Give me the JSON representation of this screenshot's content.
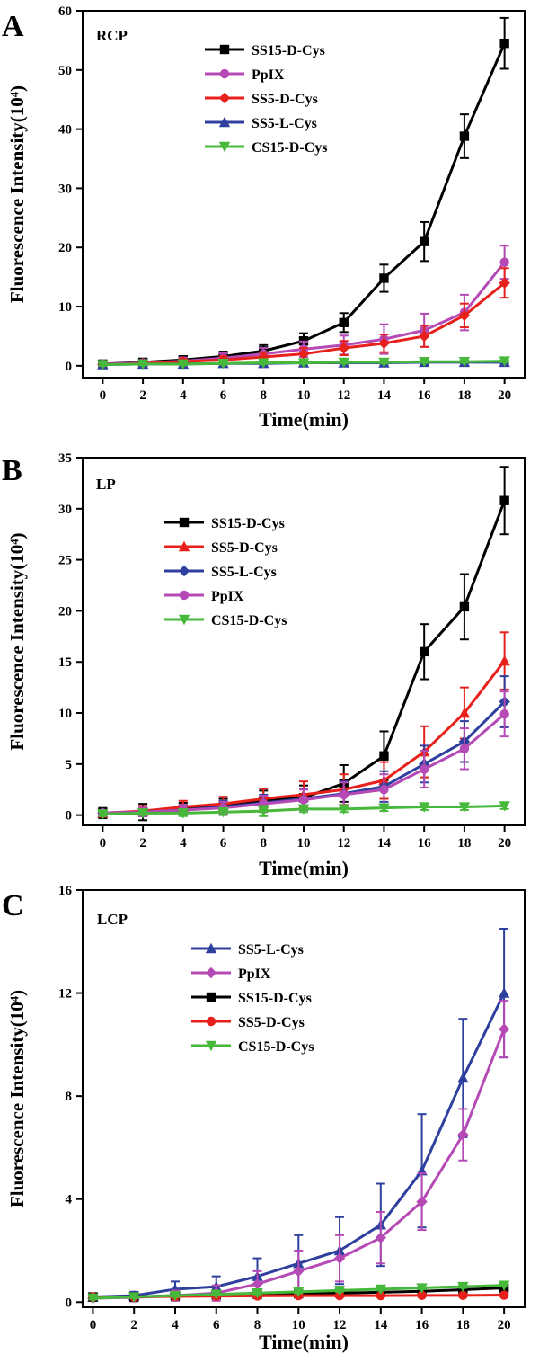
{
  "figure": {
    "panels": [
      {
        "letter": "A",
        "tag": "RCP"
      },
      {
        "letter": "B",
        "tag": "LP"
      },
      {
        "letter": "C",
        "tag": "LCP"
      }
    ]
  },
  "chart_data": [
    {
      "type": "line",
      "panel": "A",
      "title": "RCP",
      "xlabel": "Time(min)",
      "ylabel": "Fluorescence Intensity(10⁴)",
      "xlim": [
        -1,
        21
      ],
      "ylim": [
        -2,
        60
      ],
      "x_ticks": [
        0,
        2,
        4,
        6,
        8,
        10,
        12,
        14,
        16,
        18,
        20
      ],
      "y_ticks": [
        0,
        10,
        20,
        30,
        40,
        50,
        60
      ],
      "x": [
        0,
        2,
        4,
        6,
        8,
        10,
        12,
        14,
        16,
        18,
        20
      ],
      "legend_position": "top-center",
      "series": [
        {
          "name": "SS15-D-Cys",
          "color": "#000000",
          "marker": "square",
          "values": [
            0.3,
            0.6,
            1.0,
            1.6,
            2.5,
            4.2,
            7.3,
            14.8,
            21.0,
            38.8,
            54.5
          ],
          "errors": [
            0.4,
            0.5,
            0.6,
            0.8,
            1.0,
            1.3,
            1.6,
            2.3,
            3.3,
            3.7,
            4.3
          ]
        },
        {
          "name": "PpIX",
          "color": "#b549b5",
          "marker": "circle",
          "values": [
            0.3,
            0.5,
            0.8,
            1.3,
            2.0,
            2.8,
            3.5,
            4.5,
            6.0,
            9.0,
            17.5
          ],
          "errors": [
            0.4,
            0.5,
            0.6,
            0.8,
            1.0,
            1.3,
            1.6,
            2.5,
            2.8,
            3.0,
            2.8
          ]
        },
        {
          "name": "SS5-D-Cys",
          "color": "#e8201c",
          "marker": "diamond",
          "values": [
            0.2,
            0.4,
            0.7,
            1.0,
            1.5,
            2.0,
            3.0,
            3.8,
            5.0,
            8.5,
            14.0
          ],
          "errors": [
            0.3,
            0.4,
            0.5,
            0.6,
            0.8,
            1.0,
            1.2,
            1.5,
            1.8,
            2.0,
            2.5
          ]
        },
        {
          "name": "SS5-L-Cys",
          "color": "#2e3f9e",
          "marker": "triangle-up",
          "values": [
            0.2,
            0.3,
            0.3,
            0.4,
            0.4,
            0.5,
            0.5,
            0.5,
            0.6,
            0.6,
            0.6
          ],
          "errors": [
            0.2,
            0.2,
            0.2,
            0.2,
            0.2,
            0.2,
            0.2,
            0.2,
            0.2,
            0.2,
            0.2
          ]
        },
        {
          "name": "CS15-D-Cys",
          "color": "#46b83a",
          "marker": "triangle-down",
          "values": [
            0.2,
            0.3,
            0.3,
            0.4,
            0.5,
            0.5,
            0.6,
            0.6,
            0.7,
            0.7,
            0.8
          ],
          "errors": [
            0.2,
            0.2,
            0.2,
            0.2,
            0.2,
            0.2,
            0.2,
            0.2,
            0.2,
            0.2,
            0.2
          ]
        }
      ]
    },
    {
      "type": "line",
      "panel": "B",
      "title": "LP",
      "xlabel": "Time(min)",
      "ylabel": "Fluorescence Intensity(10⁴)",
      "xlim": [
        -1,
        21
      ],
      "ylim": [
        -1,
        35
      ],
      "x_ticks": [
        0,
        2,
        4,
        6,
        8,
        10,
        12,
        14,
        16,
        18,
        20
      ],
      "y_ticks": [
        0,
        5,
        10,
        15,
        20,
        25,
        30,
        35
      ],
      "x": [
        0,
        2,
        4,
        6,
        8,
        10,
        12,
        14,
        16,
        18,
        20
      ],
      "legend_position": "top-center",
      "series": [
        {
          "name": "SS15-D-Cys",
          "color": "#000000",
          "marker": "square",
          "values": [
            0.2,
            0.3,
            0.6,
            0.9,
            1.4,
            1.7,
            3.1,
            5.8,
            16.0,
            20.4,
            30.8
          ],
          "errors": [
            0.5,
            0.8,
            0.6,
            0.7,
            1.0,
            1.2,
            1.8,
            2.4,
            2.7,
            3.2,
            3.3
          ]
        },
        {
          "name": "SS5-D-Cys",
          "color": "#e8201c",
          "marker": "triangle-up",
          "values": [
            0.2,
            0.4,
            0.8,
            1.1,
            1.6,
            2.0,
            2.5,
            3.4,
            6.2,
            10.0,
            15.1
          ],
          "errors": [
            0.3,
            0.5,
            0.6,
            0.7,
            1.0,
            1.3,
            1.5,
            1.8,
            2.5,
            2.5,
            2.8
          ]
        },
        {
          "name": "SS5-L-Cys",
          "color": "#2e3f9e",
          "marker": "diamond",
          "values": [
            0.2,
            0.3,
            0.5,
            0.8,
            1.2,
            1.6,
            2.1,
            2.8,
            5.0,
            7.2,
            11.1
          ],
          "errors": [
            0.3,
            0.4,
            0.5,
            0.6,
            0.8,
            1.0,
            1.2,
            1.5,
            1.8,
            2.0,
            2.5
          ]
        },
        {
          "name": "PpIX",
          "color": "#b549b5",
          "marker": "circle",
          "values": [
            0.2,
            0.3,
            0.5,
            0.7,
            1.1,
            1.5,
            2.0,
            2.5,
            4.5,
            6.5,
            9.9
          ],
          "errors": [
            0.3,
            0.4,
            0.5,
            0.6,
            0.8,
            1.0,
            1.2,
            1.5,
            1.8,
            2.0,
            2.2
          ]
        },
        {
          "name": "CS15-D-Cys",
          "color": "#46b83a",
          "marker": "triangle-down",
          "values": [
            0.1,
            0.2,
            0.2,
            0.3,
            0.4,
            0.6,
            0.6,
            0.7,
            0.8,
            0.8,
            0.9
          ],
          "errors": [
            0.2,
            0.2,
            0.3,
            0.3,
            0.5,
            0.3,
            0.3,
            0.3,
            0.3,
            0.3,
            0.3
          ]
        }
      ]
    },
    {
      "type": "line",
      "panel": "C",
      "title": "LCP",
      "xlabel": "Time(min)",
      "ylabel": "Fluorescence Intensity(10⁴)",
      "xlim": [
        -0.5,
        21
      ],
      "ylim": [
        -0.2,
        16
      ],
      "x_ticks": [
        0,
        2,
        4,
        6,
        8,
        10,
        12,
        14,
        16,
        18,
        20
      ],
      "y_ticks": [
        0,
        4,
        8,
        12,
        16
      ],
      "x": [
        0,
        2,
        4,
        6,
        8,
        10,
        12,
        14,
        16,
        18,
        20
      ],
      "legend_position": "top-center",
      "series": [
        {
          "name": "SS5-L-Cys",
          "color": "#2e3f9e",
          "marker": "triangle-up",
          "values": [
            0.2,
            0.25,
            0.5,
            0.6,
            1.0,
            1.5,
            2.0,
            3.0,
            5.1,
            8.7,
            12.0
          ],
          "errors": [
            0.1,
            0.15,
            0.3,
            0.4,
            0.7,
            1.1,
            1.3,
            1.6,
            2.2,
            2.3,
            2.5
          ]
        },
        {
          "name": "PpIX",
          "color": "#b549b5",
          "marker": "diamond",
          "values": [
            0.15,
            0.18,
            0.25,
            0.35,
            0.7,
            1.2,
            1.7,
            2.5,
            3.9,
            6.5,
            10.6
          ],
          "errors": [
            0.1,
            0.15,
            0.2,
            0.3,
            0.5,
            0.8,
            0.9,
            1.0,
            1.1,
            1.0,
            1.1
          ]
        },
        {
          "name": "SS15-D-Cys",
          "color": "#000000",
          "marker": "square",
          "values": [
            0.2,
            0.2,
            0.25,
            0.28,
            0.3,
            0.32,
            0.35,
            0.38,
            0.42,
            0.48,
            0.55
          ],
          "errors": [
            0.05,
            0.05,
            0.05,
            0.05,
            0.05,
            0.05,
            0.05,
            0.05,
            0.05,
            0.05,
            0.05
          ]
        },
        {
          "name": "SS5-D-Cys",
          "color": "#e8201c",
          "marker": "circle",
          "values": [
            0.2,
            0.2,
            0.22,
            0.23,
            0.24,
            0.25,
            0.25,
            0.25,
            0.26,
            0.26,
            0.27
          ],
          "errors": [
            0.04,
            0.04,
            0.04,
            0.04,
            0.04,
            0.04,
            0.04,
            0.04,
            0.04,
            0.04,
            0.04
          ]
        },
        {
          "name": "CS15-D-Cys",
          "color": "#46b83a",
          "marker": "triangle-down",
          "values": [
            0.15,
            0.2,
            0.25,
            0.3,
            0.35,
            0.4,
            0.45,
            0.5,
            0.55,
            0.6,
            0.65
          ],
          "errors": [
            0.05,
            0.05,
            0.05,
            0.05,
            0.05,
            0.05,
            0.05,
            0.05,
            0.05,
            0.05,
            0.05
          ]
        }
      ]
    }
  ]
}
